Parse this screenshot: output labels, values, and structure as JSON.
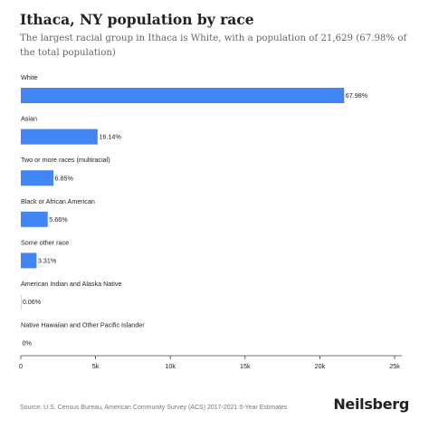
{
  "title": "Ithaca, NY population by race",
  "subtitle": "The largest racial group in Ithaca is White, with a population of 21,629 (67.98% of the total population)",
  "footer": "Source: U.S. Census Bureau, American Community Survey (ACS) 2017-2021 5-Year Estimates",
  "brand": "Neilsberg",
  "colors": {
    "bar": "#4285f4",
    "axis": "#444444",
    "text": "#222222"
  },
  "chart_data": {
    "type": "bar",
    "orientation": "horizontal",
    "categories": [
      "White",
      "Asian",
      "Two or more races (multiracial)",
      "Black or African American",
      "Some other race",
      "American Indian and Alaska Native",
      "Native Hawaiian and Other Pacific Islander"
    ],
    "values": [
      21629,
      5136,
      2179,
      1801,
      1053,
      19,
      0
    ],
    "data_labels": [
      "67.98%",
      "16.14%",
      "6.85%",
      "5.66%",
      "3.31%",
      "0.06%",
      "0%"
    ],
    "xlim": [
      0,
      25000
    ],
    "xticks": [
      0,
      5000,
      10000,
      15000,
      20000,
      25000
    ],
    "xtick_labels": [
      "0",
      "5k",
      "10k",
      "15k",
      "20k",
      "25k"
    ],
    "grid": false,
    "legend": "none"
  }
}
